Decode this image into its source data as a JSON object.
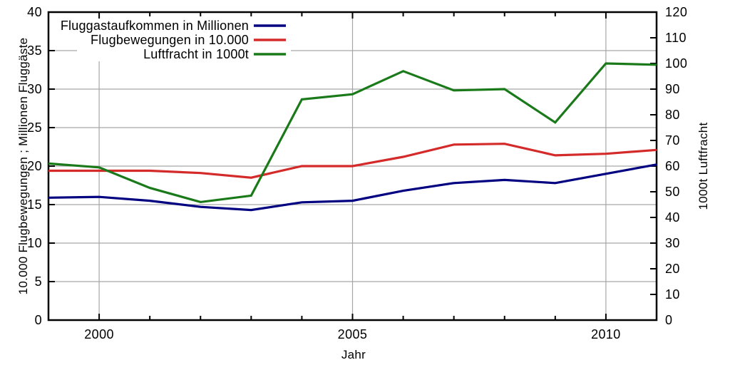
{
  "figure": {
    "background": "#ffffff",
    "text_color": "#000000",
    "grid_color": "#a6a6a6",
    "border_color": "#000000"
  },
  "chart_data": {
    "type": "line",
    "title": "",
    "xlabel": "Jahr",
    "ylabel_left": "10.000 Flugbewegungen ; Millionen Fluggäste",
    "ylabel_right": "1000t Luftfracht",
    "x": [
      1999,
      2000,
      2001,
      2002,
      2003,
      2004,
      2005,
      2006,
      2007,
      2008,
      2009,
      2010,
      2011
    ],
    "xlim": [
      1999,
      2011
    ],
    "x_major_ticks": [
      2000,
      2005,
      2010
    ],
    "x_tick_labels": [
      "2000",
      "2005",
      "2010"
    ],
    "ylim_left": [
      0,
      40
    ],
    "yticks_left": [
      0,
      5,
      10,
      15,
      20,
      25,
      30,
      35,
      40
    ],
    "ylim_right": [
      0,
      120
    ],
    "yticks_right": [
      0,
      10,
      20,
      30,
      40,
      50,
      60,
      70,
      80,
      90,
      100,
      110,
      120
    ],
    "grid": true,
    "legend_position": "top-left-inside",
    "series": [
      {
        "name": "Fluggastaufkommen in Millionen",
        "axis": "left",
        "color": "#000080",
        "values": [
          15.9,
          16.0,
          15.5,
          14.7,
          14.3,
          15.3,
          15.5,
          16.8,
          17.8,
          18.2,
          17.8,
          19.0,
          20.2
        ]
      },
      {
        "name": "Flugbewegungen in 10.000",
        "axis": "left",
        "color": "#d42a2a",
        "values": [
          19.4,
          19.4,
          19.4,
          19.1,
          18.5,
          20.0,
          20.0,
          21.2,
          22.8,
          22.9,
          21.4,
          21.6,
          22.1
        ]
      },
      {
        "name": "Luftfracht in 1000t",
        "axis": "right",
        "color": "#1a7a1a",
        "values": [
          61,
          59.5,
          51.5,
          46,
          48.5,
          86,
          88,
          97,
          89.5,
          90,
          77,
          100,
          99.5
        ]
      }
    ]
  }
}
